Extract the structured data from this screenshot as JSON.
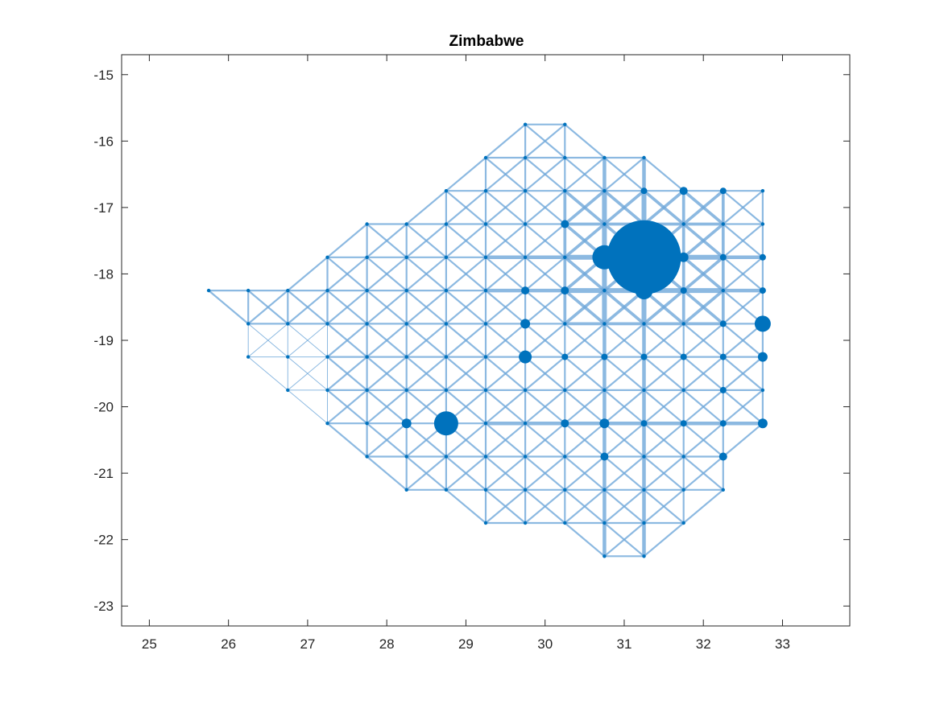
{
  "chart_data": {
    "type": "scatter",
    "title": "Zimbabwe",
    "xlabel": "",
    "ylabel": "",
    "xlim": [
      24.65,
      33.85
    ],
    "ylim": [
      -23.3,
      -14.7
    ],
    "xticks": [
      25,
      26,
      27,
      28,
      29,
      30,
      31,
      32,
      33
    ],
    "yticks": [
      -15,
      -16,
      -17,
      -18,
      -19,
      -20,
      -21,
      -22,
      -23
    ],
    "grid": false,
    "legend": "none",
    "colors": {
      "node": "#0072BD",
      "edge": "#6FA8DA",
      "axes": "#262626"
    },
    "grid_step": 0.5,
    "rows": [
      {
        "y": -15.75,
        "xmin": 29.75,
        "xmax": 30.25
      },
      {
        "y": -16.25,
        "xmin": 29.25,
        "xmax": 31.25
      },
      {
        "y": -16.75,
        "xmin": 28.75,
        "xmax": 32.75
      },
      {
        "y": -17.25,
        "xmin": 27.75,
        "xmax": 32.75
      },
      {
        "y": -17.75,
        "xmin": 27.25,
        "xmax": 32.75
      },
      {
        "y": -18.25,
        "xmin": 25.75,
        "xmax": 32.75
      },
      {
        "y": -18.75,
        "xmin": 26.25,
        "xmax": 32.75
      },
      {
        "y": -19.25,
        "xmin": 26.25,
        "xmax": 32.75
      },
      {
        "y": -19.75,
        "xmin": 26.75,
        "xmax": 32.75
      },
      {
        "y": -20.25,
        "xmin": 27.25,
        "xmax": 32.75
      },
      {
        "y": -20.75,
        "xmin": 27.75,
        "xmax": 32.25
      },
      {
        "y": -21.25,
        "xmin": 28.25,
        "xmax": 32.25
      },
      {
        "y": -21.75,
        "xmin": 29.25,
        "xmax": 31.75
      },
      {
        "y": -22.25,
        "xmin": 30.75,
        "xmax": 31.25
      }
    ],
    "nodes": [
      {
        "x": 31.25,
        "y": -17.75,
        "r": 46
      },
      {
        "x": 30.75,
        "y": -17.75,
        "r": 15
      },
      {
        "x": 28.75,
        "y": -20.25,
        "r": 15
      },
      {
        "x": 31.25,
        "y": -18.25,
        "r": 11
      },
      {
        "x": 32.75,
        "y": -18.75,
        "r": 10
      },
      {
        "x": 29.75,
        "y": -19.25,
        "r": 8
      },
      {
        "x": 32.75,
        "y": -19.25,
        "r": 6
      },
      {
        "x": 32.75,
        "y": -20.25,
        "r": 6
      },
      {
        "x": 28.25,
        "y": -20.25,
        "r": 6
      },
      {
        "x": 29.75,
        "y": -18.75,
        "r": 6
      },
      {
        "x": 30.75,
        "y": -20.25,
        "r": 6
      },
      {
        "x": 31.75,
        "y": -17.75,
        "r": 6
      },
      {
        "x": 29.75,
        "y": -18.25,
        "r": 5
      },
      {
        "x": 30.25,
        "y": -17.25,
        "r": 5
      },
      {
        "x": 30.25,
        "y": -18.25,
        "r": 5
      },
      {
        "x": 31.75,
        "y": -16.75,
        "r": 5
      },
      {
        "x": 30.25,
        "y": -20.25,
        "r": 5
      },
      {
        "x": 32.25,
        "y": -20.75,
        "r": 5
      },
      {
        "x": 30.75,
        "y": -20.75,
        "r": 5
      },
      {
        "x": 31.25,
        "y": -16.75,
        "r": 4
      },
      {
        "x": 32.25,
        "y": -16.75,
        "r": 4
      },
      {
        "x": 31.25,
        "y": -20.25,
        "r": 4
      },
      {
        "x": 31.75,
        "y": -18.25,
        "r": 4
      },
      {
        "x": 32.25,
        "y": -18.75,
        "r": 4
      },
      {
        "x": 32.25,
        "y": -19.25,
        "r": 4
      },
      {
        "x": 32.75,
        "y": -18.25,
        "r": 4
      },
      {
        "x": 32.75,
        "y": -17.75,
        "r": 4
      },
      {
        "x": 31.75,
        "y": -19.25,
        "r": 4
      },
      {
        "x": 31.75,
        "y": -20.25,
        "r": 4
      },
      {
        "x": 32.25,
        "y": -20.25,
        "r": 4
      },
      {
        "x": 32.25,
        "y": -19.75,
        "r": 4
      },
      {
        "x": 32.25,
        "y": -17.75,
        "r": 4
      },
      {
        "x": 31.25,
        "y": -19.25,
        "r": 4
      },
      {
        "x": 30.75,
        "y": -19.25,
        "r": 4
      },
      {
        "x": 30.25,
        "y": -19.25,
        "r": 4
      }
    ]
  }
}
